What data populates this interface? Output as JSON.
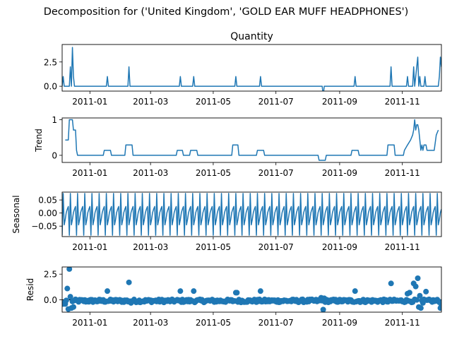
{
  "figure": {
    "suptitle": "Decomposition for ('United Kingdom', 'GOLD EAR MUFF HEADPHONES')",
    "line_color": "#1f77b4"
  },
  "chart_data": [
    {
      "type": "line",
      "title": "Quantity",
      "ylabel": "",
      "ylim": [
        -0.5,
        4.3
      ],
      "yticks": [
        0.0,
        2.5
      ],
      "ytick_labels": [
        "0.0",
        "2.5"
      ],
      "xlim": [
        "2010-12-05",
        "2011-12-09"
      ],
      "xticks": [
        "2011-01-01",
        "2011-03-01",
        "2011-05-01",
        "2011-07-01",
        "2011-09-01",
        "2011-11-01"
      ],
      "xtick_labels": [
        "2011-01",
        "2011-03",
        "2011-05",
        "2011-07",
        "2011-09",
        "2011-11"
      ],
      "series": [
        {
          "points": [
            [
              "2010-12-05",
              0
            ],
            [
              "2010-12-06",
              1
            ],
            [
              "2010-12-07",
              0
            ],
            [
              "2010-12-12",
              0
            ],
            [
              "2010-12-13",
              2
            ],
            [
              "2010-12-14",
              0
            ],
            [
              "2010-12-15",
              4
            ],
            [
              "2010-12-16",
              1
            ],
            [
              "2010-12-17",
              0
            ],
            [
              "2011-01-17",
              0
            ],
            [
              "2011-01-18",
              1
            ],
            [
              "2011-01-19",
              0
            ],
            [
              "2011-02-07",
              0
            ],
            [
              "2011-02-08",
              2
            ],
            [
              "2011-02-09",
              0
            ],
            [
              "2011-03-29",
              0
            ],
            [
              "2011-03-30",
              1
            ],
            [
              "2011-03-31",
              0
            ],
            [
              "2011-04-11",
              0
            ],
            [
              "2011-04-12",
              1
            ],
            [
              "2011-04-13",
              0
            ],
            [
              "2011-05-22",
              0
            ],
            [
              "2011-05-23",
              1
            ],
            [
              "2011-05-24",
              0
            ],
            [
              "2011-06-15",
              0
            ],
            [
              "2011-06-16",
              1
            ],
            [
              "2011-06-17",
              0
            ],
            [
              "2011-08-15",
              0
            ],
            [
              "2011-08-16",
              -1
            ],
            [
              "2011-08-17",
              0
            ],
            [
              "2011-09-15",
              0
            ],
            [
              "2011-09-16",
              1
            ],
            [
              "2011-09-17",
              0
            ],
            [
              "2011-10-20",
              0
            ],
            [
              "2011-10-21",
              2
            ],
            [
              "2011-10-22",
              0
            ],
            [
              "2011-11-05",
              0
            ],
            [
              "2011-11-06",
              1
            ],
            [
              "2011-11-07",
              0
            ],
            [
              "2011-11-11",
              0
            ],
            [
              "2011-11-12",
              2
            ],
            [
              "2011-11-13",
              0
            ],
            [
              "2011-11-14",
              1
            ],
            [
              "2011-11-15",
              2
            ],
            [
              "2011-11-16",
              3
            ],
            [
              "2011-11-17",
              0
            ],
            [
              "2011-11-18",
              1
            ],
            [
              "2011-11-19",
              0
            ],
            [
              "2011-11-22",
              0
            ],
            [
              "2011-11-23",
              1
            ],
            [
              "2011-11-24",
              0
            ],
            [
              "2011-12-06",
              0
            ],
            [
              "2011-12-07",
              1
            ],
            [
              "2011-12-08",
              3
            ],
            [
              "2011-12-09",
              2
            ]
          ]
        }
      ]
    },
    {
      "type": "line",
      "title": "",
      "ylabel": "Trend",
      "ylim": [
        -0.2,
        1.05
      ],
      "yticks": [
        0,
        1
      ],
      "ytick_labels": [
        "0",
        "1"
      ],
      "xlim": [
        "2010-12-05",
        "2011-12-09"
      ],
      "xticks": [
        "2011-01-01",
        "2011-03-01",
        "2011-05-01",
        "2011-07-01",
        "2011-09-01",
        "2011-11-01"
      ],
      "xtick_labels": [
        "2011-01",
        "2011-03",
        "2011-05",
        "2011-07",
        "2011-09",
        "2011-11"
      ],
      "series": [
        {
          "points": [
            [
              "2010-12-08",
              0.43
            ],
            [
              "2010-12-10",
              0.43
            ],
            [
              "2010-12-11",
              0.43
            ],
            [
              "2010-12-12",
              1.0
            ],
            [
              "2010-12-15",
              1.0
            ],
            [
              "2010-12-16",
              0.71
            ],
            [
              "2010-12-18",
              0.71
            ],
            [
              "2010-12-19",
              0.14
            ],
            [
              "2010-12-20",
              0.0
            ],
            [
              "2011-01-14",
              0.0
            ],
            [
              "2011-01-15",
              0.14
            ],
            [
              "2011-01-21",
              0.14
            ],
            [
              "2011-01-22",
              0.0
            ],
            [
              "2011-02-04",
              0.0
            ],
            [
              "2011-02-05",
              0.29
            ],
            [
              "2011-02-11",
              0.29
            ],
            [
              "2011-02-12",
              0.0
            ],
            [
              "2011-03-26",
              0.0
            ],
            [
              "2011-03-27",
              0.14
            ],
            [
              "2011-04-01",
              0.14
            ],
            [
              "2011-04-02",
              0.0
            ],
            [
              "2011-04-08",
              0.0
            ],
            [
              "2011-04-09",
              0.14
            ],
            [
              "2011-04-15",
              0.14
            ],
            [
              "2011-04-16",
              0.0
            ],
            [
              "2011-05-19",
              0.0
            ],
            [
              "2011-05-20",
              0.29
            ],
            [
              "2011-05-25",
              0.29
            ],
            [
              "2011-05-26",
              0.0
            ],
            [
              "2011-06-12",
              0.0
            ],
            [
              "2011-06-13",
              0.14
            ],
            [
              "2011-06-19",
              0.14
            ],
            [
              "2011-06-20",
              0.0
            ],
            [
              "2011-08-11",
              0.0
            ],
            [
              "2011-08-12",
              -0.14
            ],
            [
              "2011-08-18",
              -0.14
            ],
            [
              "2011-08-19",
              0.0
            ],
            [
              "2011-09-12",
              0.0
            ],
            [
              "2011-09-13",
              0.14
            ],
            [
              "2011-09-19",
              0.14
            ],
            [
              "2011-09-20",
              0.0
            ],
            [
              "2011-10-17",
              0.0
            ],
            [
              "2011-10-18",
              0.29
            ],
            [
              "2011-10-24",
              0.29
            ],
            [
              "2011-10-25",
              0.0
            ],
            [
              "2011-11-02",
              0.0
            ],
            [
              "2011-11-03",
              0.14
            ],
            [
              "2011-11-06",
              0.29
            ],
            [
              "2011-11-09",
              0.43
            ],
            [
              "2011-11-11",
              0.57
            ],
            [
              "2011-11-12",
              0.71
            ],
            [
              "2011-11-13",
              1.0
            ],
            [
              "2011-11-14",
              0.71
            ],
            [
              "2011-11-15",
              0.86
            ],
            [
              "2011-11-16",
              0.86
            ],
            [
              "2011-11-17",
              0.71
            ],
            [
              "2011-11-18",
              0.43
            ],
            [
              "2011-11-19",
              0.14
            ],
            [
              "2011-11-20",
              0.29
            ],
            [
              "2011-11-21",
              0.14
            ],
            [
              "2011-11-22",
              0.29
            ],
            [
              "2011-11-24",
              0.29
            ],
            [
              "2011-11-25",
              0.14
            ],
            [
              "2011-12-02",
              0.14
            ],
            [
              "2011-12-04",
              0.57
            ],
            [
              "2011-12-06",
              0.71
            ]
          ]
        }
      ]
    },
    {
      "type": "line",
      "title": "",
      "ylabel": "Seasonal",
      "ylim": [
        -0.09,
        0.08
      ],
      "yticks": [
        0.05,
        0.0,
        -0.05
      ],
      "ytick_labels": [
        "0.05",
        "0.00",
        "−0.05"
      ],
      "xlim": [
        "2010-12-05",
        "2011-12-09"
      ],
      "xticks": [
        "2011-01-01",
        "2011-03-01",
        "2011-05-01",
        "2011-07-01",
        "2011-09-01",
        "2011-11-01"
      ],
      "xtick_labels": [
        "2011-01",
        "2011-03",
        "2011-05",
        "2011-07",
        "2011-09",
        "2011-11"
      ],
      "seasonal_pattern": {
        "period_days": 7,
        "start": "2010-12-05",
        "end": "2011-12-09",
        "cycle_values": [
          -0.085,
          0.075,
          -0.045,
          -0.025,
          0.002,
          0.015,
          0.025
        ]
      }
    },
    {
      "type": "scatter",
      "title": "",
      "ylabel": "Resid",
      "ylim": [
        -1.2,
        3.2
      ],
      "yticks": [
        0.0,
        2.5
      ],
      "ytick_labels": [
        "0.0",
        "2.5"
      ],
      "xlim": [
        "2010-12-05",
        "2011-12-09"
      ],
      "xticks": [
        "2011-01-01",
        "2011-03-01",
        "2011-05-01",
        "2011-07-01",
        "2011-09-01",
        "2011-11-01"
      ],
      "xtick_labels": [
        "2011-01",
        "2011-03",
        "2011-05",
        "2011-07",
        "2011-09",
        "2011-11"
      ],
      "baseline": 0,
      "series": [
        {
          "name": "",
          "notable_points": [
            [
              "2010-12-06",
              -0.4
            ],
            [
              "2010-12-07",
              -0.3
            ],
            [
              "2010-12-08",
              -0.4
            ],
            [
              "2010-12-10",
              1.1
            ],
            [
              "2010-12-11",
              -0.9
            ],
            [
              "2010-12-12",
              3.0
            ],
            [
              "2010-12-13",
              0.3
            ],
            [
              "2010-12-14",
              -0.8
            ],
            [
              "2010-12-16",
              -0.7
            ],
            [
              "2011-01-18",
              0.85
            ],
            [
              "2011-02-08",
              1.7
            ],
            [
              "2011-02-10",
              -0.3
            ],
            [
              "2011-03-30",
              0.85
            ],
            [
              "2011-04-12",
              0.85
            ],
            [
              "2011-05-23",
              0.7
            ],
            [
              "2011-05-24",
              0.7
            ],
            [
              "2011-06-16",
              0.85
            ],
            [
              "2011-08-14",
              0.2
            ],
            [
              "2011-08-16",
              -0.95
            ],
            [
              "2011-08-17",
              0.15
            ],
            [
              "2011-09-16",
              0.85
            ],
            [
              "2011-10-21",
              1.6
            ],
            [
              "2011-11-06",
              0.6
            ],
            [
              "2011-11-08",
              0.7
            ],
            [
              "2011-11-12",
              1.6
            ],
            [
              "2011-11-14",
              1.3
            ],
            [
              "2011-11-16",
              2.1
            ],
            [
              "2011-11-18",
              0.4
            ],
            [
              "2011-11-19",
              -0.8
            ],
            [
              "2011-11-17",
              -0.7
            ],
            [
              "2011-11-21",
              -0.3
            ],
            [
              "2011-11-24",
              0.8
            ],
            [
              "2011-12-08",
              -0.8
            ],
            [
              "2011-12-09",
              -0.6
            ]
          ],
          "background_range": [
            -0.25,
            0.05
          ]
        }
      ]
    }
  ]
}
